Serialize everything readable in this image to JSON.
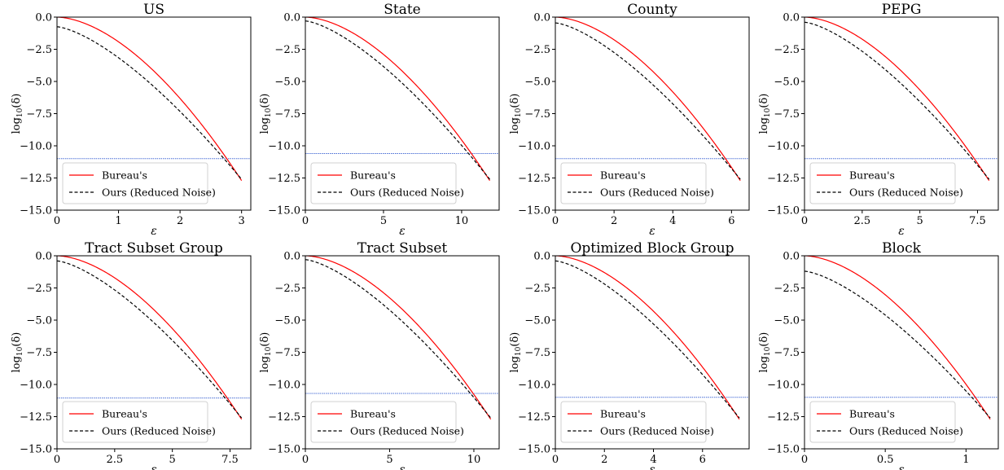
{
  "legend": [
    "Bureau's",
    "Ours (Reduced Noise)"
  ],
  "colors": {
    "bureau": "#ff0000",
    "ours": "#000000",
    "threshold": "#4a6fd6"
  },
  "ylabel_main": "log",
  "ylabel_sub": "10",
  "ylabel_arg": "(δ)",
  "xlabel": "ε",
  "chart_data": [
    {
      "type": "line",
      "title": "US",
      "xlim": [
        0,
        3.15
      ],
      "ylim": [
        -15,
        0
      ],
      "xticks": [
        0,
        1,
        2,
        3
      ],
      "yticks": [
        0,
        -2.5,
        -5,
        -7.5,
        -10,
        -12.5,
        -15
      ],
      "eps_max": 3.0,
      "ours_start": -0.75,
      "threshold": -11,
      "legend_position": "lower-left",
      "grid": false,
      "series": [
        {
          "name": "Bureau's"
        },
        {
          "name": "Ours (Reduced Noise)"
        }
      ]
    },
    {
      "type": "line",
      "title": "State",
      "xlim": [
        0,
        12.4
      ],
      "ylim": [
        -15,
        0
      ],
      "xticks": [
        0,
        5,
        10
      ],
      "yticks": [
        0,
        -2.5,
        -5,
        -7.5,
        -10,
        -12.5,
        -15
      ],
      "eps_max": 11.8,
      "ours_start": -0.3,
      "threshold": -10.6,
      "legend_position": "lower-left",
      "grid": false,
      "series": [
        {
          "name": "Bureau's"
        },
        {
          "name": "Ours (Reduced Noise)"
        }
      ]
    },
    {
      "type": "line",
      "title": "County",
      "xlim": [
        0,
        6.6
      ],
      "ylim": [
        -15,
        0
      ],
      "xticks": [
        0,
        2,
        4,
        6
      ],
      "yticks": [
        0,
        -2.5,
        -5,
        -7.5,
        -10,
        -12.5,
        -15
      ],
      "eps_max": 6.3,
      "ours_start": -0.45,
      "threshold": -11,
      "legend_position": "lower-left",
      "grid": false,
      "series": [
        {
          "name": "Bureau's"
        },
        {
          "name": "Ours (Reduced Noise)"
        }
      ]
    },
    {
      "type": "line",
      "title": "PEPG",
      "xlim": [
        0,
        8.4
      ],
      "ylim": [
        -15,
        0
      ],
      "xticks": [
        0,
        2.5,
        5,
        7.5
      ],
      "yticks": [
        0,
        -2.5,
        -5,
        -7.5,
        -10,
        -12.5,
        -15
      ],
      "eps_max": 8.0,
      "ours_start": -0.4,
      "threshold": -11,
      "legend_position": "lower-left",
      "grid": false,
      "series": [
        {
          "name": "Bureau's"
        },
        {
          "name": "Ours (Reduced Noise)"
        }
      ]
    },
    {
      "type": "line",
      "title": "Tract Subset Group",
      "xlim": [
        0,
        8.4
      ],
      "ylim": [
        -15,
        0
      ],
      "xticks": [
        0,
        2.5,
        5,
        7.5
      ],
      "yticks": [
        0,
        -2.5,
        -5,
        -7.5,
        -10,
        -12.5,
        -15
      ],
      "eps_max": 8.0,
      "ours_start": -0.4,
      "threshold": -11.05,
      "legend_position": "lower-left",
      "grid": false,
      "series": [
        {
          "name": "Bureau's"
        },
        {
          "name": "Ours (Reduced Noise)"
        }
      ]
    },
    {
      "type": "line",
      "title": "Tract Subset",
      "xlim": [
        0,
        11.5
      ],
      "ylim": [
        -15,
        0
      ],
      "xticks": [
        0,
        5,
        10
      ],
      "yticks": [
        0,
        -2.5,
        -5,
        -7.5,
        -10,
        -12.5,
        -15
      ],
      "eps_max": 11.0,
      "ours_start": -0.3,
      "threshold": -10.7,
      "legend_position": "lower-left",
      "grid": false,
      "series": [
        {
          "name": "Bureau's"
        },
        {
          "name": "Ours (Reduced Noise)"
        }
      ]
    },
    {
      "type": "line",
      "title": "Optimized Block Group",
      "xlim": [
        0,
        7.9
      ],
      "ylim": [
        -15,
        0
      ],
      "xticks": [
        0,
        2,
        4,
        6
      ],
      "yticks": [
        0,
        -2.5,
        -5,
        -7.5,
        -10,
        -12.5,
        -15
      ],
      "eps_max": 7.5,
      "ours_start": -0.4,
      "threshold": -11,
      "legend_position": "lower-left",
      "grid": false,
      "series": [
        {
          "name": "Bureau's"
        },
        {
          "name": "Ours (Reduced Noise)"
        }
      ]
    },
    {
      "type": "line",
      "title": "Block",
      "xlim": [
        0,
        1.2
      ],
      "ylim": [
        -15,
        0
      ],
      "xticks": [
        0,
        0.5,
        1
      ],
      "yticks": [
        0,
        -2.5,
        -5,
        -7.5,
        -10,
        -12.5,
        -15
      ],
      "eps_max": 1.15,
      "ours_start": -1.2,
      "threshold": -11,
      "legend_position": "lower-left",
      "grid": false,
      "series": [
        {
          "name": "Bureau's"
        },
        {
          "name": "Ours (Reduced Noise)"
        }
      ]
    }
  ]
}
